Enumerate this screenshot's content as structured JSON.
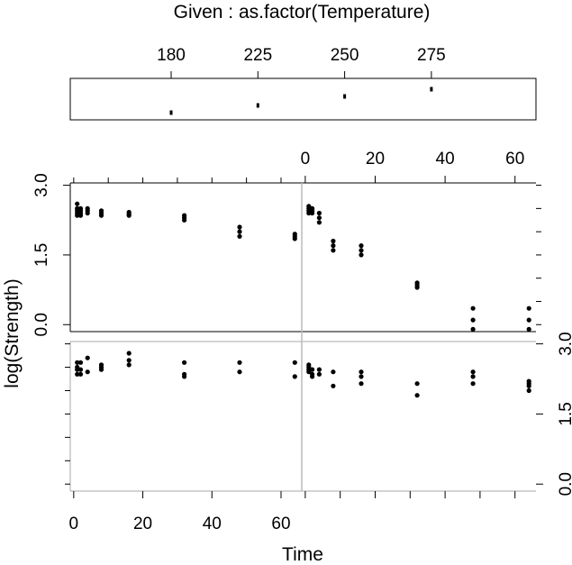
{
  "chart_data": {
    "type": "scatter",
    "title": "Given :  as.factor(Temperature)",
    "xlabel": "Time",
    "ylabel": "log(Strength)",
    "given": {
      "levels": [
        "180",
        "225",
        "250",
        "275"
      ],
      "tick_labels": [
        "180",
        "225",
        "250",
        "275"
      ],
      "level_values": [
        0,
        1,
        2,
        3
      ]
    },
    "x_tick_labels": [
      "0",
      "20",
      "40",
      "60"
    ],
    "x_tick_values": [
      0,
      20,
      40,
      60
    ],
    "y_tick_labels": [
      "0.0",
      "1.5",
      "3.0"
    ],
    "y_tick_values": [
      0,
      1.5,
      3
    ],
    "xlim": [
      -1,
      66
    ],
    "ylim": [
      -0.15,
      3.05
    ],
    "panels": [
      {
        "level": "250",
        "x": [
          1,
          1,
          1,
          1,
          1,
          2,
          2,
          2,
          2,
          4,
          4,
          4,
          8,
          8,
          8,
          16,
          16,
          16,
          32,
          32,
          32,
          48,
          48,
          48,
          64,
          64,
          64
        ],
        "y": [
          2.6,
          2.5,
          2.45,
          2.4,
          2.35,
          2.5,
          2.45,
          2.4,
          2.35,
          2.5,
          2.45,
          2.4,
          2.45,
          2.4,
          2.35,
          2.42,
          2.38,
          2.35,
          2.35,
          2.3,
          2.25,
          2.1,
          2.0,
          1.9,
          1.95,
          1.9,
          1.85
        ]
      },
      {
        "level": "275",
        "x": [
          1,
          1,
          1,
          1,
          2,
          2,
          2,
          4,
          4,
          4,
          8,
          8,
          8,
          16,
          16,
          16,
          32,
          32,
          32,
          48,
          48,
          48,
          64,
          64,
          64
        ],
        "y": [
          2.55,
          2.5,
          2.45,
          2.4,
          2.5,
          2.45,
          2.4,
          2.4,
          2.3,
          2.2,
          1.8,
          1.7,
          1.6,
          1.7,
          1.6,
          1.5,
          0.9,
          0.85,
          0.8,
          0.35,
          0.1,
          -0.1,
          0.35,
          0.1,
          -0.1
        ]
      },
      {
        "level": "180",
        "x": [
          1,
          1,
          1,
          1,
          2,
          2,
          2,
          4,
          4,
          8,
          8,
          8,
          16,
          16,
          16,
          32,
          32,
          32,
          48,
          48,
          64,
          64
        ],
        "y": [
          2.6,
          2.5,
          2.45,
          2.35,
          2.6,
          2.45,
          2.35,
          2.7,
          2.4,
          2.55,
          2.5,
          2.45,
          2.8,
          2.65,
          2.55,
          2.6,
          2.35,
          2.3,
          2.6,
          2.4,
          2.6,
          2.3
        ]
      },
      {
        "level": "225",
        "x": [
          1,
          1,
          1,
          1,
          2,
          2,
          2,
          4,
          4,
          8,
          8,
          16,
          16,
          16,
          32,
          32,
          48,
          48,
          48,
          64,
          64,
          64,
          64
        ],
        "y": [
          2.55,
          2.5,
          2.45,
          2.4,
          2.45,
          2.35,
          2.3,
          2.45,
          2.35,
          2.4,
          2.1,
          2.4,
          2.3,
          2.15,
          2.15,
          1.9,
          2.4,
          2.3,
          2.15,
          2.2,
          2.15,
          2.1,
          2.0
        ]
      }
    ]
  }
}
